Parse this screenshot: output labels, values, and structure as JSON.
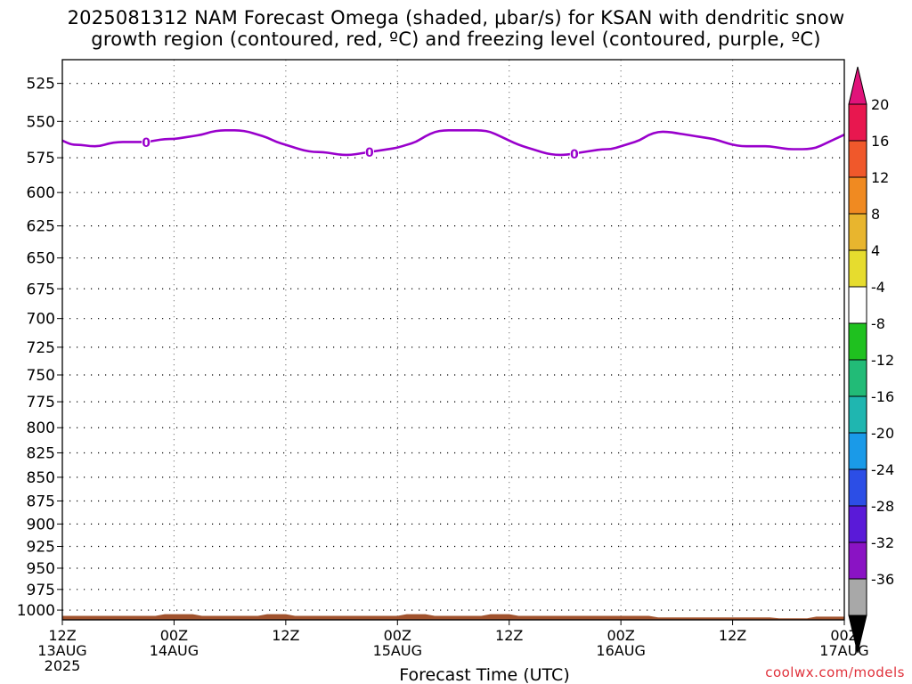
{
  "chart_data": {
    "type": "heatmap",
    "title_line1": "2025081312 NAM Forecast Omega (shaded, μbar/s) for KSAN with dendritic snow",
    "title_line2": "growth region (contoured, red, ºC) and freezing level (contoured, purple, ºC)",
    "xlabel": "Forecast Time (UTC)",
    "ylabel": "",
    "credit": "coolwx.com/models",
    "y_axis": {
      "scale": "pressure",
      "ylim": [
        1012,
        510
      ],
      "ticks": [
        525,
        550,
        575,
        600,
        625,
        650,
        675,
        700,
        725,
        750,
        775,
        800,
        825,
        850,
        875,
        900,
        925,
        950,
        975,
        1000
      ]
    },
    "x_axis": {
      "xlim_hours": [
        0,
        84
      ],
      "ticks": [
        {
          "hour": 0,
          "line1": "12Z",
          "line2": "13AUG",
          "line3": "2025"
        },
        {
          "hour": 12,
          "line1": "00Z",
          "line2": "14AUG",
          "line3": ""
        },
        {
          "hour": 24,
          "line1": "12Z",
          "line2": "",
          "line3": ""
        },
        {
          "hour": 36,
          "line1": "00Z",
          "line2": "15AUG",
          "line3": ""
        },
        {
          "hour": 48,
          "line1": "12Z",
          "line2": "",
          "line3": ""
        },
        {
          "hour": 60,
          "line1": "00Z",
          "line2": "16AUG",
          "line3": ""
        },
        {
          "hour": 72,
          "line1": "12Z",
          "line2": "",
          "line3": ""
        },
        {
          "hour": 84,
          "line1": "00Z",
          "line2": "17AUG",
          "line3": ""
        }
      ]
    },
    "freezing_level": {
      "label": "0",
      "color": "#9900cc",
      "label_hours": [
        9,
        33,
        55
      ],
      "points": [
        [
          0,
          563
        ],
        [
          1,
          566
        ],
        [
          2,
          566
        ],
        [
          3,
          567
        ],
        [
          4,
          567
        ],
        [
          5,
          565
        ],
        [
          6,
          564
        ],
        [
          7,
          564
        ],
        [
          8,
          564
        ],
        [
          9,
          564
        ],
        [
          10,
          563
        ],
        [
          11,
          562
        ],
        [
          12,
          562
        ],
        [
          13,
          561
        ],
        [
          14,
          560
        ],
        [
          15,
          559
        ],
        [
          16,
          557
        ],
        [
          17,
          556
        ],
        [
          18,
          556
        ],
        [
          19,
          556
        ],
        [
          20,
          557
        ],
        [
          21,
          559
        ],
        [
          22,
          561
        ],
        [
          23,
          564
        ],
        [
          24,
          566
        ],
        [
          25,
          568
        ],
        [
          26,
          570
        ],
        [
          27,
          571
        ],
        [
          28,
          571
        ],
        [
          29,
          572
        ],
        [
          30,
          573
        ],
        [
          31,
          573
        ],
        [
          32,
          572
        ],
        [
          33,
          571
        ],
        [
          34,
          570
        ],
        [
          35,
          569
        ],
        [
          36,
          568
        ],
        [
          37,
          566
        ],
        [
          38,
          564
        ],
        [
          39,
          560
        ],
        [
          40,
          557
        ],
        [
          41,
          556
        ],
        [
          42,
          556
        ],
        [
          43,
          556
        ],
        [
          44,
          556
        ],
        [
          45,
          556
        ],
        [
          46,
          557
        ],
        [
          47,
          560
        ],
        [
          48,
          563
        ],
        [
          49,
          566
        ],
        [
          50,
          568
        ],
        [
          51,
          570
        ],
        [
          52,
          572
        ],
        [
          53,
          573
        ],
        [
          54,
          573
        ],
        [
          55,
          572
        ],
        [
          56,
          571
        ],
        [
          57,
          570
        ],
        [
          58,
          569
        ],
        [
          59,
          569
        ],
        [
          60,
          567
        ],
        [
          61,
          565
        ],
        [
          62,
          563
        ],
        [
          63,
          559
        ],
        [
          64,
          557
        ],
        [
          65,
          557
        ],
        [
          66,
          558
        ],
        [
          67,
          559
        ],
        [
          68,
          560
        ],
        [
          69,
          561
        ],
        [
          70,
          562
        ],
        [
          71,
          564
        ],
        [
          72,
          566
        ],
        [
          73,
          567
        ],
        [
          74,
          567
        ],
        [
          75,
          567
        ],
        [
          76,
          567
        ],
        [
          77,
          568
        ],
        [
          78,
          569
        ],
        [
          79,
          569
        ],
        [
          80,
          569
        ],
        [
          81,
          568
        ],
        [
          82,
          565
        ],
        [
          83,
          562
        ],
        [
          84,
          559
        ]
      ]
    },
    "surface": {
      "color": "#a0522d",
      "points": [
        [
          0,
          1007
        ],
        [
          5,
          1007
        ],
        [
          10,
          1007
        ],
        [
          11,
          1005
        ],
        [
          14,
          1005
        ],
        [
          15,
          1007
        ],
        [
          21,
          1007
        ],
        [
          22,
          1005
        ],
        [
          24,
          1005
        ],
        [
          25,
          1007
        ],
        [
          36,
          1007
        ],
        [
          37,
          1005
        ],
        [
          39,
          1005
        ],
        [
          40,
          1007
        ],
        [
          45,
          1007
        ],
        [
          46,
          1005
        ],
        [
          48,
          1005
        ],
        [
          49,
          1007
        ],
        [
          63,
          1007
        ],
        [
          64,
          1009
        ],
        [
          76,
          1009
        ],
        [
          77,
          1010
        ],
        [
          80,
          1010
        ],
        [
          81,
          1008
        ],
        [
          84,
          1008
        ]
      ]
    },
    "colorbar": {
      "labels": [
        "20",
        "16",
        "12",
        "8",
        "4",
        "-4",
        "-8",
        "-12",
        "-16",
        "-20",
        "-24",
        "-28",
        "-32",
        "-36"
      ],
      "colors": [
        "#e8174f",
        "#f0582b",
        "#f08a21",
        "#e8b52e",
        "#e6dc2e",
        "#ffffff",
        "#1fc11f",
        "#22bb77",
        "#1fb6b0",
        "#1a9ae8",
        "#2c4ee6",
        "#5a1ad8",
        "#8a13c4",
        "#a8a8a8"
      ],
      "top_arrow_color": "#e0137a",
      "bottom_arrow_color": "#000000"
    }
  }
}
